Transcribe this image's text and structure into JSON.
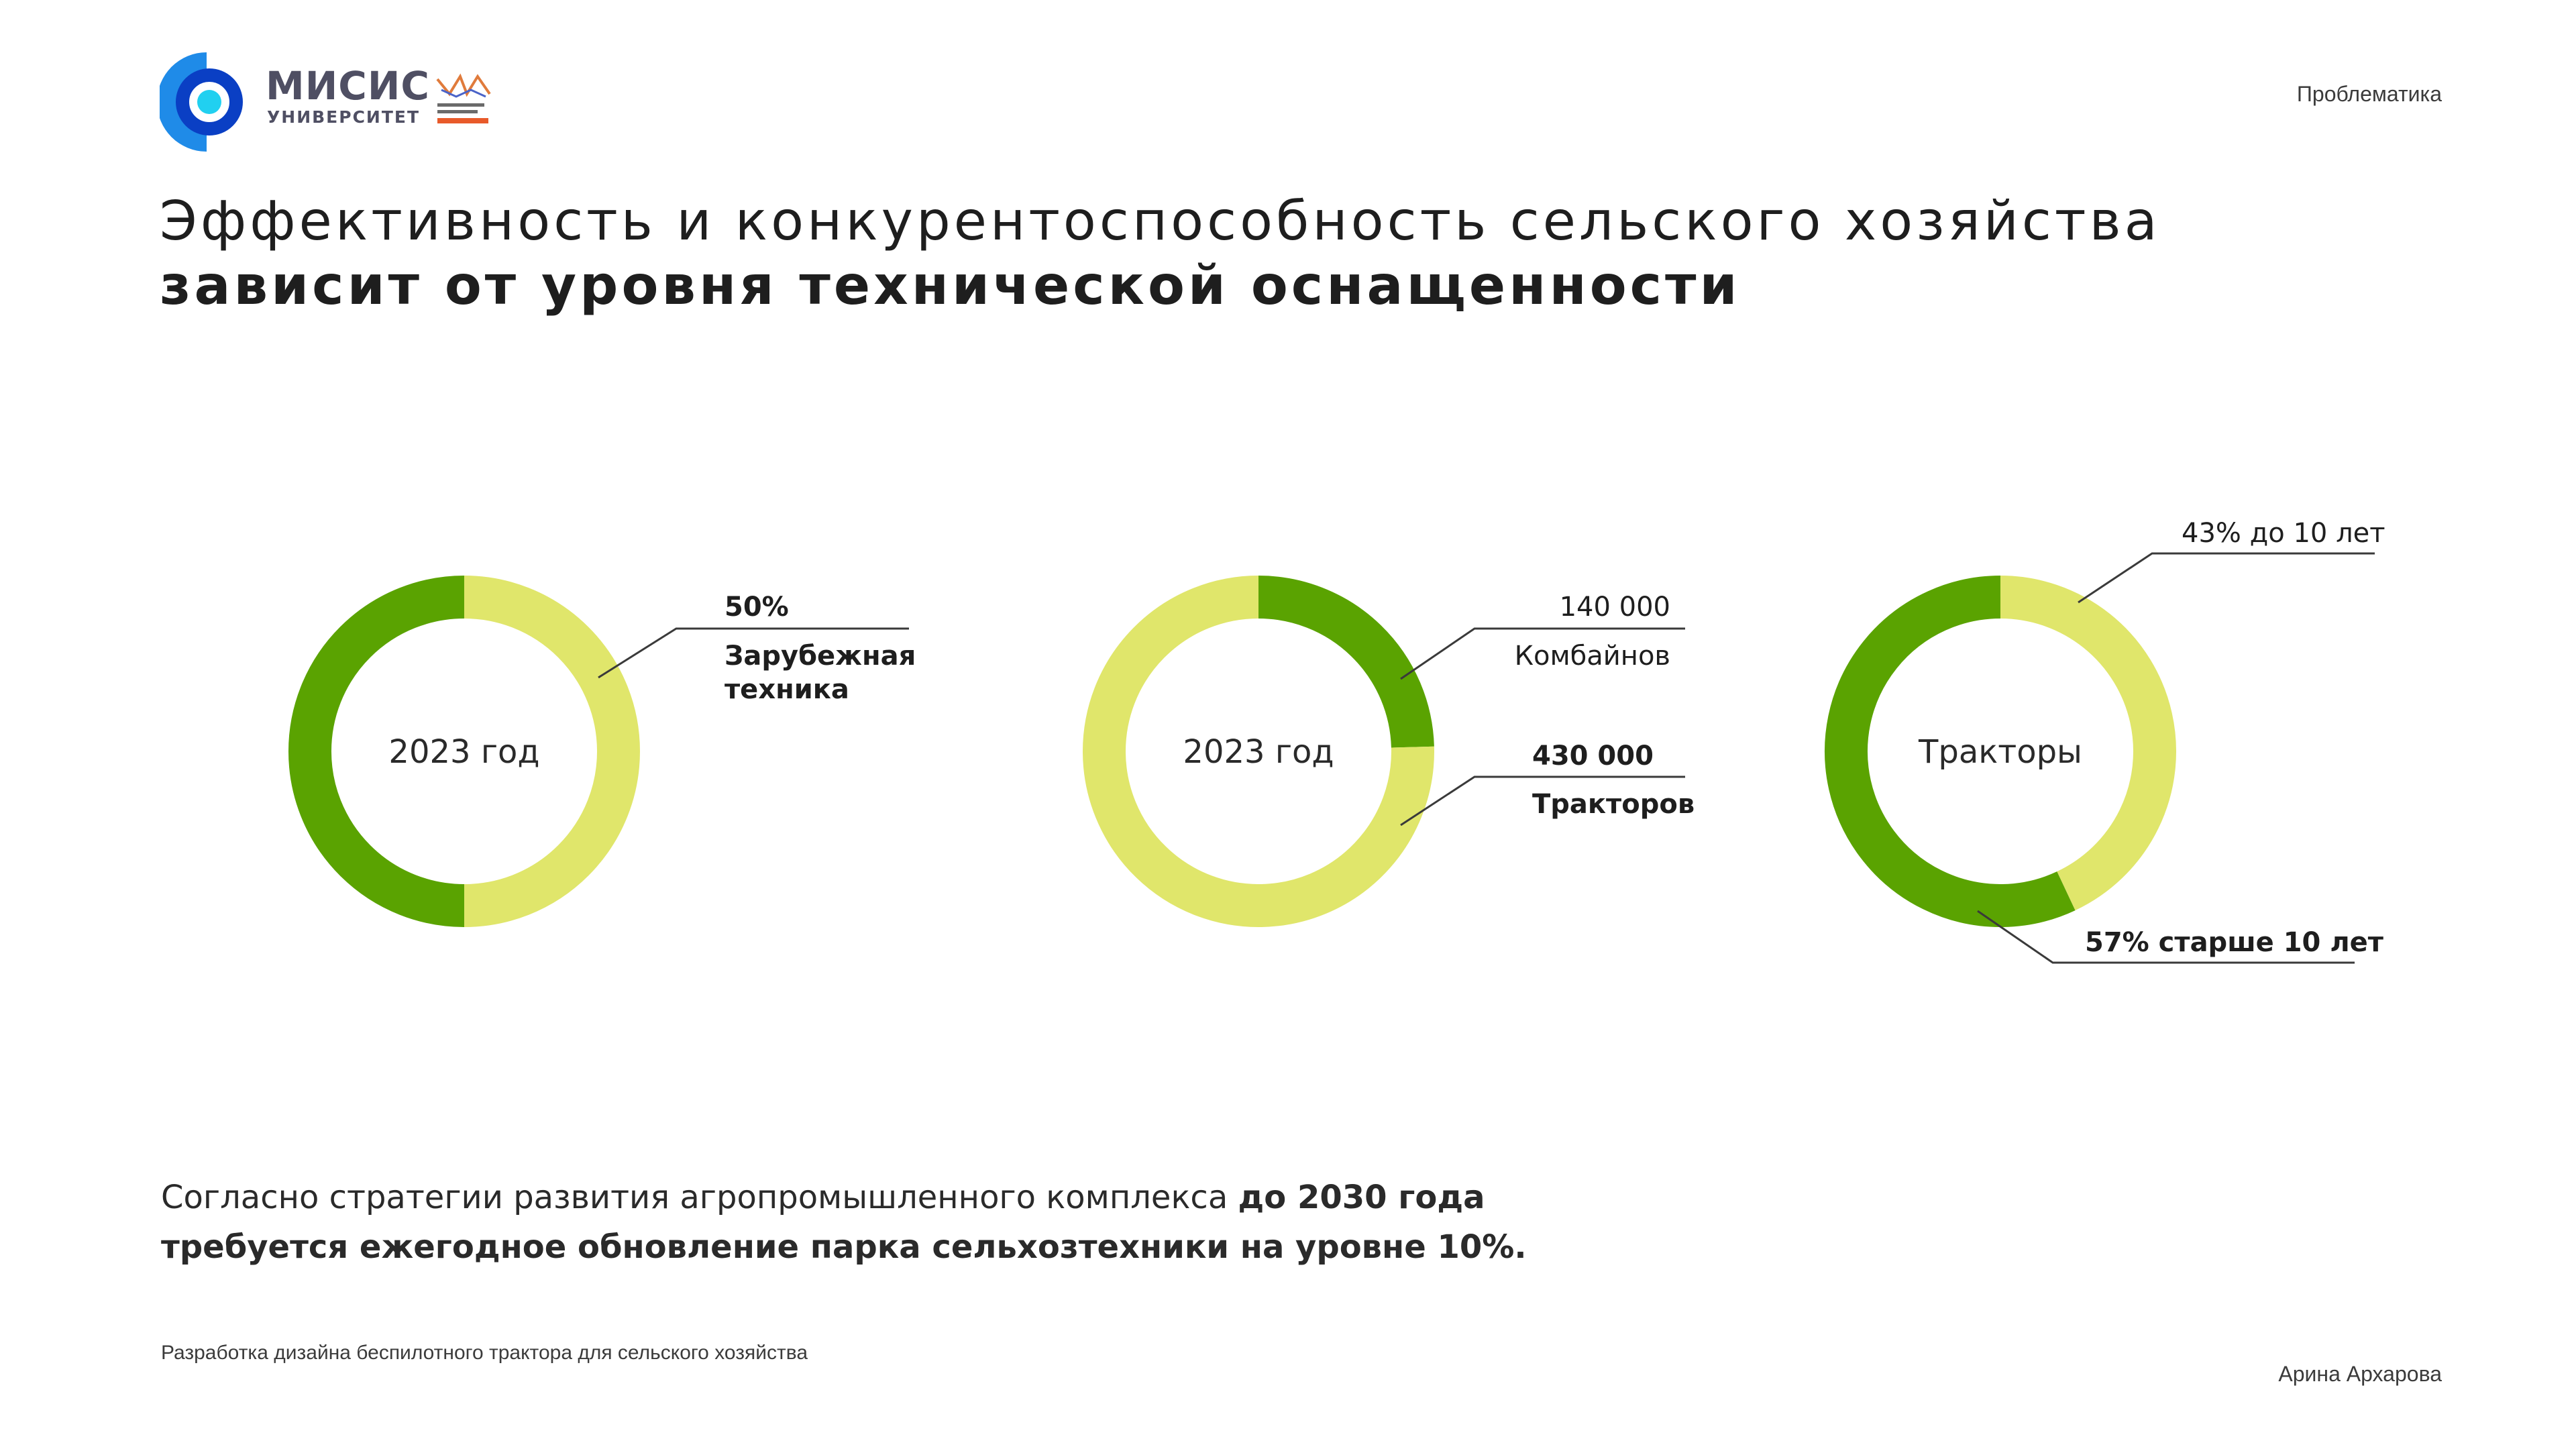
{
  "header": {
    "logo_main": "МИСИС",
    "logo_sub": "УНИВЕРСИТЕТ",
    "section": "Проблематика"
  },
  "title": {
    "regular": "Эффективность и конкурентоспособность сельского хозяйства ",
    "bold": "зависит от уровня технической оснащенности"
  },
  "colors": {
    "dark_green": "#5aa301",
    "light_green": "#e0e66b",
    "brand_blue": "#1f6fe0"
  },
  "chart_data": [
    {
      "type": "pie",
      "center_label": "2023 год",
      "slices": [
        {
          "value": 50,
          "color": "#e0e66b",
          "label_lines": [
            "50%",
            "Зарубежная",
            "техника"
          ]
        },
        {
          "value": 50,
          "color": "#5aa301",
          "label_lines": []
        }
      ]
    },
    {
      "type": "pie",
      "center_label": "2023 год",
      "slices": [
        {
          "value": 140000,
          "color": "#5aa301",
          "label_lines": [
            "140 000",
            "Комбайнов"
          ]
        },
        {
          "value": 430000,
          "color": "#e0e66b",
          "label_lines": [
            "430 000",
            "Тракторов"
          ]
        }
      ]
    },
    {
      "type": "pie",
      "center_label": "Тракторы",
      "slices": [
        {
          "value": 43,
          "color": "#e0e66b",
          "label_lines": [
            "43% до 10 лет"
          ]
        },
        {
          "value": 57,
          "color": "#5aa301",
          "label_lines": [
            "57% старше 10 лет"
          ]
        }
      ]
    }
  ],
  "note": {
    "regular": "Согласно стратегии развития агропромышленного комплекса ",
    "bold1": "до 2030 года",
    "bold2": "требуется ежегодное обновление парка сельхозтехники на уровне 10%."
  },
  "footer": {
    "left": "Разработка дизайна беспилотного трактора для сельского хозяйства",
    "right": "Арина Архарова"
  }
}
